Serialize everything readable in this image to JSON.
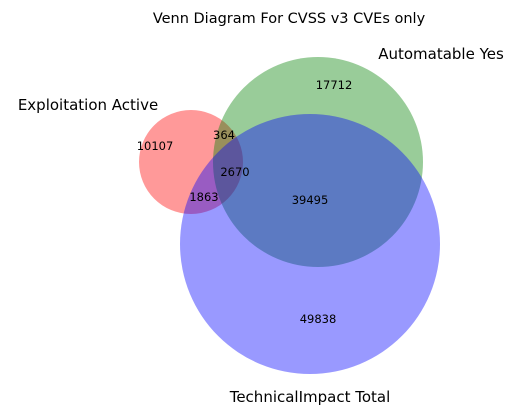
{
  "title": "Venn Diagram For CVSS v3 CVEs only",
  "sets": [
    {
      "key": "A",
      "label": "Exploitation Active",
      "color": "#ff0000"
    },
    {
      "key": "B",
      "label": "Automatable Yes",
      "color": "#008000"
    },
    {
      "key": "C",
      "label": "TechnicalImpact Total",
      "color": "#0000ff"
    }
  ],
  "regions": {
    "A_only": "10107",
    "B_only": "17712",
    "C_only": "49838",
    "AB_only": "364",
    "AC_only": "1863",
    "BC_only": "39495",
    "ABC": "2670"
  },
  "chart_data": {
    "type": "venn",
    "title": "Venn Diagram For CVSS v3 CVEs only",
    "sets": [
      "Exploitation Active",
      "Automatable Yes",
      "TechnicalImpact Total"
    ],
    "subsets": {
      "100": 10107,
      "010": 17712,
      "001": 49838,
      "110": 364,
      "101": 1863,
      "011": 39495,
      "111": 2670
    }
  }
}
